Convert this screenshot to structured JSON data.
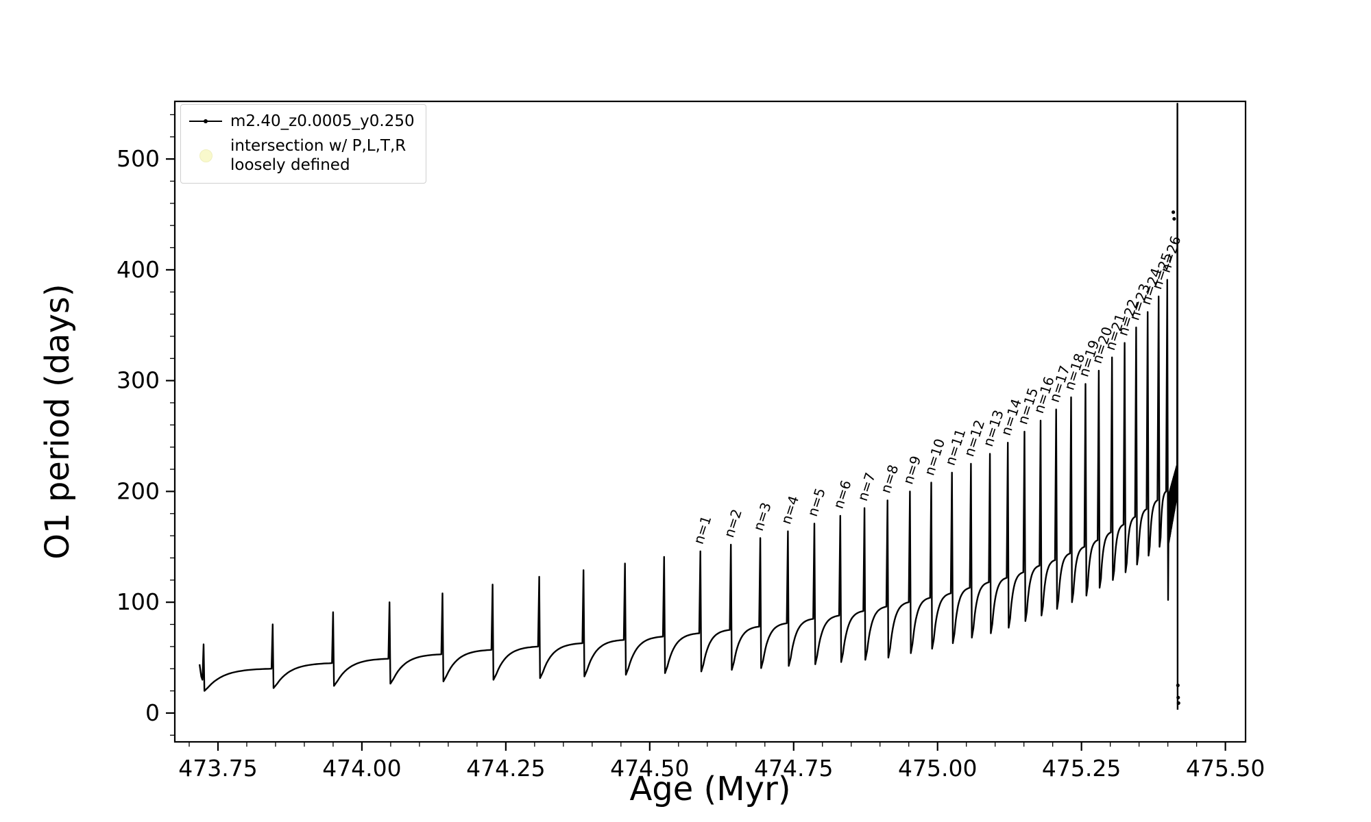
{
  "figure": {
    "background": "#ffffff"
  },
  "chart_data": {
    "type": "line",
    "title": "",
    "xlabel": "Age (Myr)",
    "ylabel": "O1 period (days)",
    "xlim": [
      473.675,
      475.535
    ],
    "ylim": [
      -26,
      552
    ],
    "x_ticks": [
      473.75,
      474.0,
      474.25,
      474.5,
      474.75,
      475.0,
      475.25,
      475.5
    ],
    "x_minor_step": 0.05,
    "y_ticks": [
      0,
      100,
      200,
      300,
      400,
      500
    ],
    "y_minor_step": 20,
    "grid": false,
    "series_color": "#000000",
    "legend": {
      "position": "upper-left",
      "entries": [
        {
          "label": "m2.40_z0.0005_y0.250",
          "marker": "line-dot",
          "color": "#000000"
        },
        {
          "label": "intersection w/ P,L,T,R\nloosely defined",
          "marker": "circle",
          "color": "#f8f8c4"
        }
      ]
    },
    "pre_points": [
      [
        473.718,
        44
      ],
      [
        473.721,
        33
      ]
    ],
    "spikes": [
      {
        "x": 473.725,
        "peak": 62,
        "base": 30
      },
      {
        "x": 473.845,
        "peak": 80,
        "base": 40
      },
      {
        "x": 473.95,
        "peak": 91,
        "base": 45
      },
      {
        "x": 474.048,
        "peak": 100,
        "base": 49
      },
      {
        "x": 474.14,
        "peak": 108,
        "base": 53
      },
      {
        "x": 474.227,
        "peak": 116,
        "base": 57
      },
      {
        "x": 474.308,
        "peak": 123,
        "base": 60
      },
      {
        "x": 474.385,
        "peak": 129,
        "base": 63
      },
      {
        "x": 474.457,
        "peak": 135,
        "base": 66
      },
      {
        "x": 474.525,
        "peak": 141,
        "base": 69
      },
      {
        "x": 474.588,
        "peak": 146,
        "base": 72,
        "label": "n=1"
      },
      {
        "x": 474.641,
        "peak": 152,
        "base": 75,
        "label": "n=2"
      },
      {
        "x": 474.692,
        "peak": 158,
        "base": 78,
        "label": "n=3"
      },
      {
        "x": 474.74,
        "peak": 164,
        "base": 81,
        "label": "n=4"
      },
      {
        "x": 474.786,
        "peak": 171,
        "base": 85,
        "label": "n=5"
      },
      {
        "x": 474.831,
        "peak": 178,
        "base": 88,
        "label": "n=6"
      },
      {
        "x": 474.873,
        "peak": 185,
        "base": 92,
        "label": "n=7"
      },
      {
        "x": 474.913,
        "peak": 192,
        "base": 96,
        "label": "n=8"
      },
      {
        "x": 474.952,
        "peak": 200,
        "base": 100,
        "label": "n=9"
      },
      {
        "x": 474.989,
        "peak": 208,
        "base": 104,
        "label": "n=10"
      },
      {
        "x": 475.025,
        "peak": 217,
        "base": 108,
        "label": "n=11"
      },
      {
        "x": 475.058,
        "peak": 225,
        "base": 113,
        "label": "n=12"
      },
      {
        "x": 475.091,
        "peak": 234,
        "base": 118,
        "label": "n=13"
      },
      {
        "x": 475.122,
        "peak": 244,
        "base": 122,
        "label": "n=14"
      },
      {
        "x": 475.151,
        "peak": 254,
        "base": 127,
        "label": "n=15"
      },
      {
        "x": 475.179,
        "peak": 264,
        "base": 133,
        "label": "n=16"
      },
      {
        "x": 475.206,
        "peak": 274,
        "base": 138,
        "label": "n=17"
      },
      {
        "x": 475.232,
        "peak": 285,
        "base": 144,
        "label": "n=18"
      },
      {
        "x": 475.257,
        "peak": 297,
        "base": 150,
        "label": "n=19"
      },
      {
        "x": 475.28,
        "peak": 309,
        "base": 156,
        "label": "n=20"
      },
      {
        "x": 475.303,
        "peak": 321,
        "base": 163,
        "label": "n=21"
      },
      {
        "x": 475.325,
        "peak": 334,
        "base": 170,
        "label": "n=22"
      },
      {
        "x": 475.345,
        "peak": 348,
        "base": 177,
        "label": "n=23"
      },
      {
        "x": 475.365,
        "peak": 362,
        "base": 184,
        "label": "n=24"
      },
      {
        "x": 475.384,
        "peak": 376,
        "base": 192,
        "label": "n=25"
      },
      {
        "x": 475.399,
        "peak": 391,
        "base": 200,
        "label": "n=26"
      }
    ],
    "final_event": {
      "hump_start_x": 475.401,
      "hump_end_x": 475.416,
      "hump_low": [
        152,
        196
      ],
      "hump_high": [
        196,
        224
      ],
      "crash_x": 475.4166,
      "crash_top": 550,
      "crash_bottom": 3
    },
    "extra_dots": [
      [
        475.4095,
        452
      ],
      [
        475.411,
        446
      ],
      [
        475.418,
        14
      ],
      [
        475.4186,
        9
      ],
      [
        475.4175,
        25
      ]
    ]
  }
}
